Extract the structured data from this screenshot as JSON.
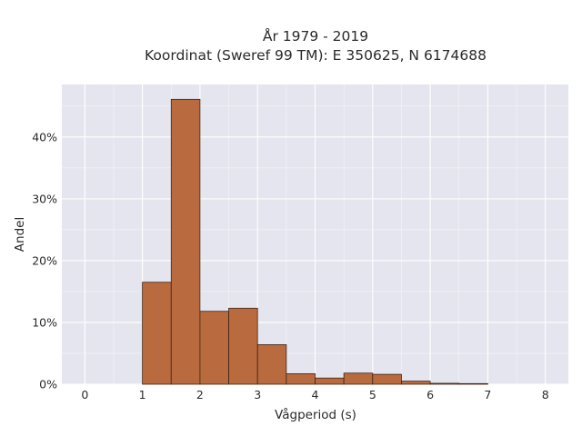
{
  "chart_data": {
    "type": "bar",
    "title": "År 1979 - 2019",
    "subtitle": "Koordinat (Sweref 99 TM): E 350625, N 6174688",
    "xlabel": "Vågperiod (s)",
    "ylabel": "Andel",
    "xlim": [
      -0.4,
      8.4
    ],
    "ylim": [
      0,
      48.5
    ],
    "x_ticks": [
      0,
      1,
      2,
      3,
      4,
      5,
      6,
      7,
      8
    ],
    "y_ticks": [
      0,
      10,
      20,
      30,
      40
    ],
    "y_tick_labels": [
      "0%",
      "10%",
      "20%",
      "30%",
      "40%"
    ],
    "bin_width": 0.5,
    "bins": [
      {
        "x0": 1.0,
        "x1": 1.5,
        "value": 16.5
      },
      {
        "x0": 1.5,
        "x1": 2.0,
        "value": 46.1
      },
      {
        "x0": 2.0,
        "x1": 2.5,
        "value": 11.8
      },
      {
        "x0": 2.5,
        "x1": 3.0,
        "value": 12.3
      },
      {
        "x0": 3.0,
        "x1": 3.5,
        "value": 6.4
      },
      {
        "x0": 3.5,
        "x1": 4.0,
        "value": 1.7
      },
      {
        "x0": 4.0,
        "x1": 4.5,
        "value": 1.0
      },
      {
        "x0": 4.5,
        "x1": 5.0,
        "value": 1.8
      },
      {
        "x0": 5.0,
        "x1": 5.5,
        "value": 1.6
      },
      {
        "x0": 5.5,
        "x1": 6.0,
        "value": 0.5
      },
      {
        "x0": 6.0,
        "x1": 6.5,
        "value": 0.15
      },
      {
        "x0": 6.5,
        "x1": 7.0,
        "value": 0.1
      }
    ],
    "grid": true,
    "colors": {
      "plot_background": "#e5e5ef",
      "grid": "#ffffff",
      "bar_fill": "#b96a3e",
      "bar_stroke": "#3f2414"
    }
  }
}
